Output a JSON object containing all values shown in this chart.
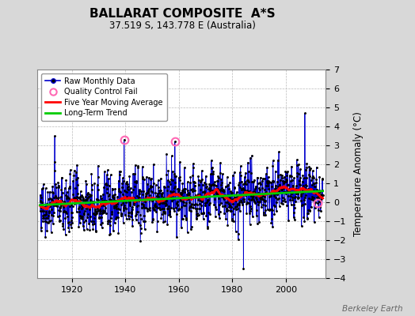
{
  "title": "BALLARAT COMPOSITE  A*S",
  "subtitle": "37.519 S, 143.778 E (Australia)",
  "ylabel": "Temperature Anomaly (°C)",
  "watermark": "Berkeley Earth",
  "start_year": 1908,
  "end_year": 2013,
  "ylim": [
    -4,
    7
  ],
  "yticks": [
    -4,
    -3,
    -2,
    -1,
    0,
    1,
    2,
    3,
    4,
    5,
    6,
    7
  ],
  "xticks": [
    1920,
    1940,
    1960,
    1980,
    2000
  ],
  "bg_color": "#d8d8d8",
  "plot_bg_color": "#ffffff",
  "grid_color": "#bbbbbb",
  "qc_fail_years": [
    1939.5,
    1958.5,
    2012.0
  ],
  "qc_fail_values": [
    3.3,
    3.2,
    -0.05
  ],
  "trend_slope": 0.007,
  "trend_intercept": -0.15
}
